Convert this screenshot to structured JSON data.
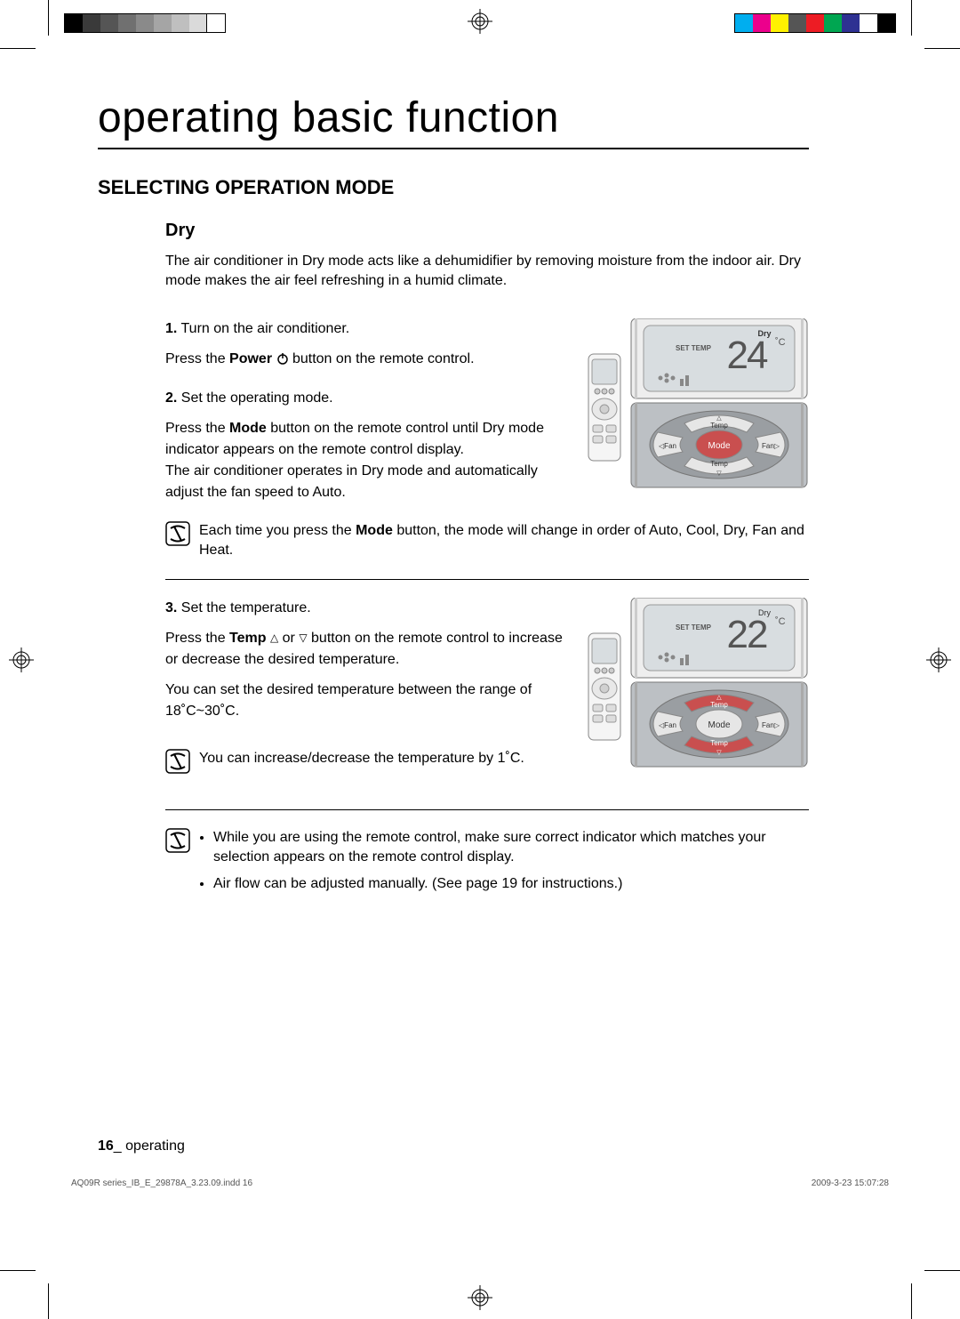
{
  "title": "operating basic function",
  "section": "SELECTING OPERATION MODE",
  "mode": {
    "name": "Dry",
    "intro": "The air conditioner in Dry mode acts like a dehumidifier by removing moisture from the indoor air. Dry mode makes the air feel refreshing in a humid climate."
  },
  "steps": [
    {
      "num": "1.",
      "title": "Turn on the air conditioner.",
      "body_pre": "Press the ",
      "body_bold": "Power",
      "body_post": " button on the remote control."
    },
    {
      "num": "2.",
      "title": "Set the operating mode.",
      "body_pre": "Press the ",
      "body_bold": "Mode",
      "body_post": " button on the remote control until Dry mode indicator appears on the remote control display.",
      "body_extra": "The air conditioner operates in Dry mode and automatically adjust the fan speed to Auto."
    },
    {
      "num": "3.",
      "title": "Set the temperature.",
      "body_pre": "Press the ",
      "body_bold": "Temp",
      "body_post": " button on the remote control to increase or decrease the desired temperature.",
      "body_extra": "You can set the desired temperature between the range of 18˚C~30˚C."
    }
  ],
  "notes": {
    "mode_cycle_pre": "Each time you press the ",
    "mode_cycle_bold": "Mode",
    "mode_cycle_post": " button, the mode will change in order of Auto, Cool, Dry, Fan and Heat.",
    "temp_step": "You can increase/decrease the temperature by 1˚C.",
    "bullets": [
      "While you are using the remote control, make sure correct indicator which matches your selection appears on the remote control display.",
      "Air flow can be adjusted manually. (See page 19 for instructions.)"
    ]
  },
  "remote1": {
    "mode_label": "Dry",
    "set_temp_label": "SET TEMP",
    "temp_value": "24",
    "temp_unit": "˚C",
    "highlighted": "Mode",
    "btn_fan_l": "Fan",
    "btn_mode": "Mode",
    "btn_fan_r": "Fan",
    "btn_temp": "Temp"
  },
  "remote2": {
    "mode_label": "Dry",
    "set_temp_label": "SET TEMP",
    "temp_value": "22",
    "temp_unit": "˚C",
    "highlighted": "Temp",
    "btn_fan_l": "Fan",
    "btn_mode": "Mode",
    "btn_fan_r": "Fan",
    "btn_temp": "Temp"
  },
  "footer": {
    "page": "16",
    "label": "_ operating"
  },
  "imprint": {
    "left": "AQ09R series_IB_E_29878A_3.23.09.indd   16",
    "right": "2009-3-23   15:07:28"
  },
  "colorbar_left": [
    "#000000",
    "#3a3a3a",
    "#555555",
    "#707070",
    "#8a8a8a",
    "#a5a5a5",
    "#bfbfbf",
    "#dadada",
    "#ffffff"
  ],
  "colorbar_right": [
    "#00aeef",
    "#ec008c",
    "#fff200",
    "#555555",
    "#ed1c24",
    "#00a651",
    "#2e3192",
    "#ffffff",
    "#000000"
  ],
  "colors": {
    "highlight": "#c94f4f",
    "lcd_bg": "#d8dde0",
    "panel": "#bcc0c4",
    "panel_dark": "#9a9ea2"
  }
}
